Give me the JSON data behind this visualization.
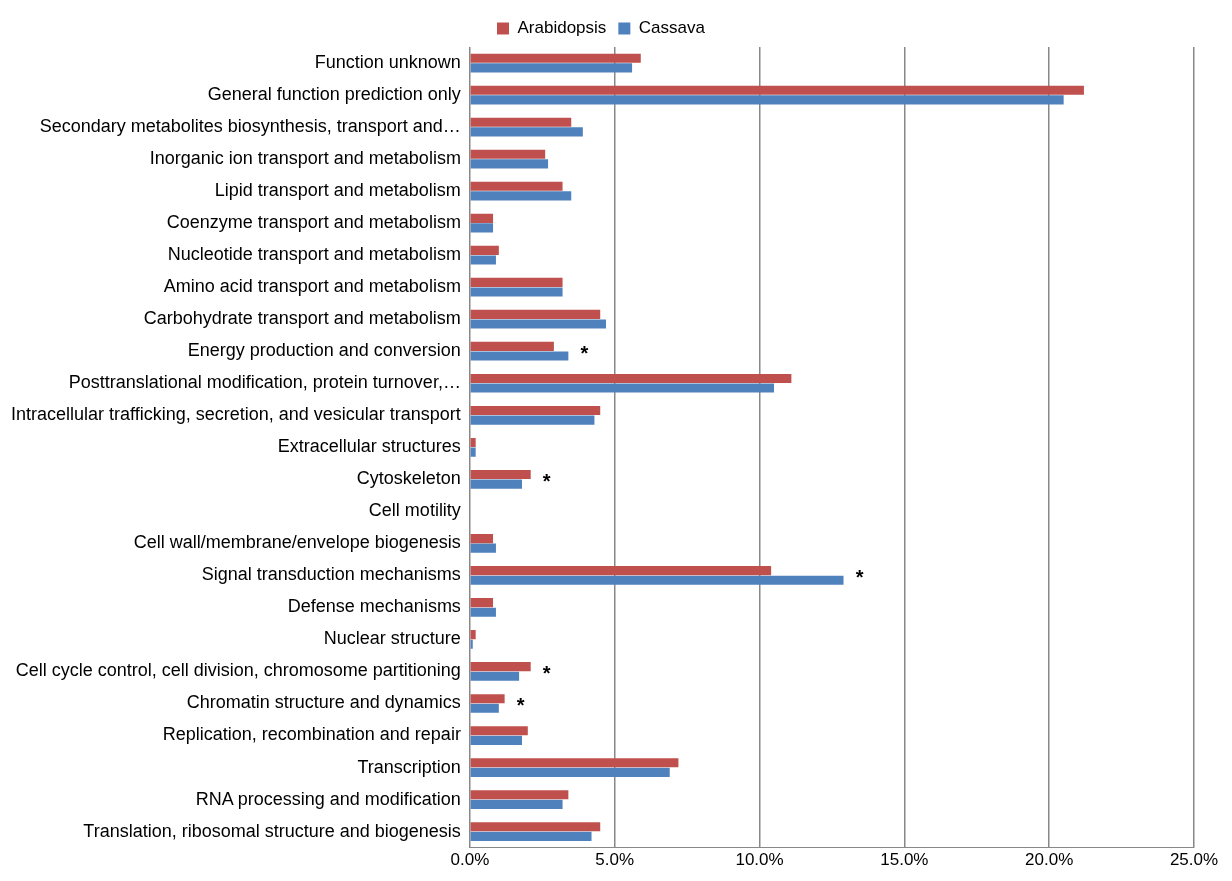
{
  "chart_data": {
    "type": "bar",
    "orientation": "horizontal",
    "categories": [
      "Function unknown",
      "General function prediction only",
      "Secondary metabolites biosynthesis, transport and…",
      "Inorganic ion transport and metabolism",
      "Lipid transport and metabolism",
      "Coenzyme transport and metabolism",
      "Nucleotide transport and metabolism",
      "Amino acid transport and metabolism",
      "Carbohydrate transport and metabolism",
      "Energy production and conversion",
      "Posttranslational modification, protein turnover,…",
      "Intracellular trafficking, secretion, and vesicular transport",
      "Extracellular structures",
      "Cytoskeleton",
      "Cell motility",
      "Cell wall/membrane/envelope biogenesis",
      "Signal transduction mechanisms",
      "Defense mechanisms",
      "Nuclear structure",
      "Cell cycle control, cell division, chromosome partitioning",
      "Chromatin structure and dynamics",
      "Replication, recombination and repair",
      "Transcription",
      "RNA processing and modification",
      "Translation, ribosomal structure and biogenesis"
    ],
    "series": [
      {
        "name": "Arabidopsis",
        "color": "#c0504d",
        "values": [
          5.9,
          21.2,
          3.5,
          2.6,
          3.2,
          0.8,
          1.0,
          3.2,
          4.5,
          2.9,
          11.1,
          4.5,
          0.2,
          2.1,
          0,
          0.8,
          10.4,
          0.8,
          0.2,
          2.1,
          1.2,
          2.0,
          7.2,
          3.4,
          4.5
        ]
      },
      {
        "name": "Cassava",
        "color": "#4f81bd",
        "values": [
          5.6,
          20.5,
          3.9,
          2.7,
          3.5,
          0.8,
          0.9,
          3.2,
          4.7,
          3.4,
          10.5,
          4.3,
          0.2,
          1.8,
          0,
          0.9,
          12.9,
          0.9,
          0.1,
          1.7,
          1.0,
          1.8,
          6.9,
          3.2,
          4.2
        ]
      }
    ],
    "xlim": [
      0,
      25
    ],
    "xticks": [
      {
        "value": 0,
        "label": "0.0%"
      },
      {
        "value": 5,
        "label": "5.0%"
      },
      {
        "value": 10,
        "label": "10.0%"
      },
      {
        "value": 15,
        "label": "15.0%"
      },
      {
        "value": 20,
        "label": "20.0%"
      },
      {
        "value": 25,
        "label": "25.0%"
      }
    ],
    "grid": "x",
    "legend": "top",
    "annotations": [
      {
        "text": "*",
        "x": 3.4,
        "y": "Energy production and conversion"
      },
      {
        "text": "*",
        "x": 2.1,
        "y": "Cytoskeleton"
      },
      {
        "text": "*",
        "x": 12.9,
        "y": "Signal transduction mechanisms"
      },
      {
        "text": "*",
        "x": 2.1,
        "y": "Cell cycle control, cell division, chromosome partitioning"
      },
      {
        "text": "*",
        "x": 1.2,
        "y": "Chromatin structure and dynamics"
      }
    ]
  }
}
